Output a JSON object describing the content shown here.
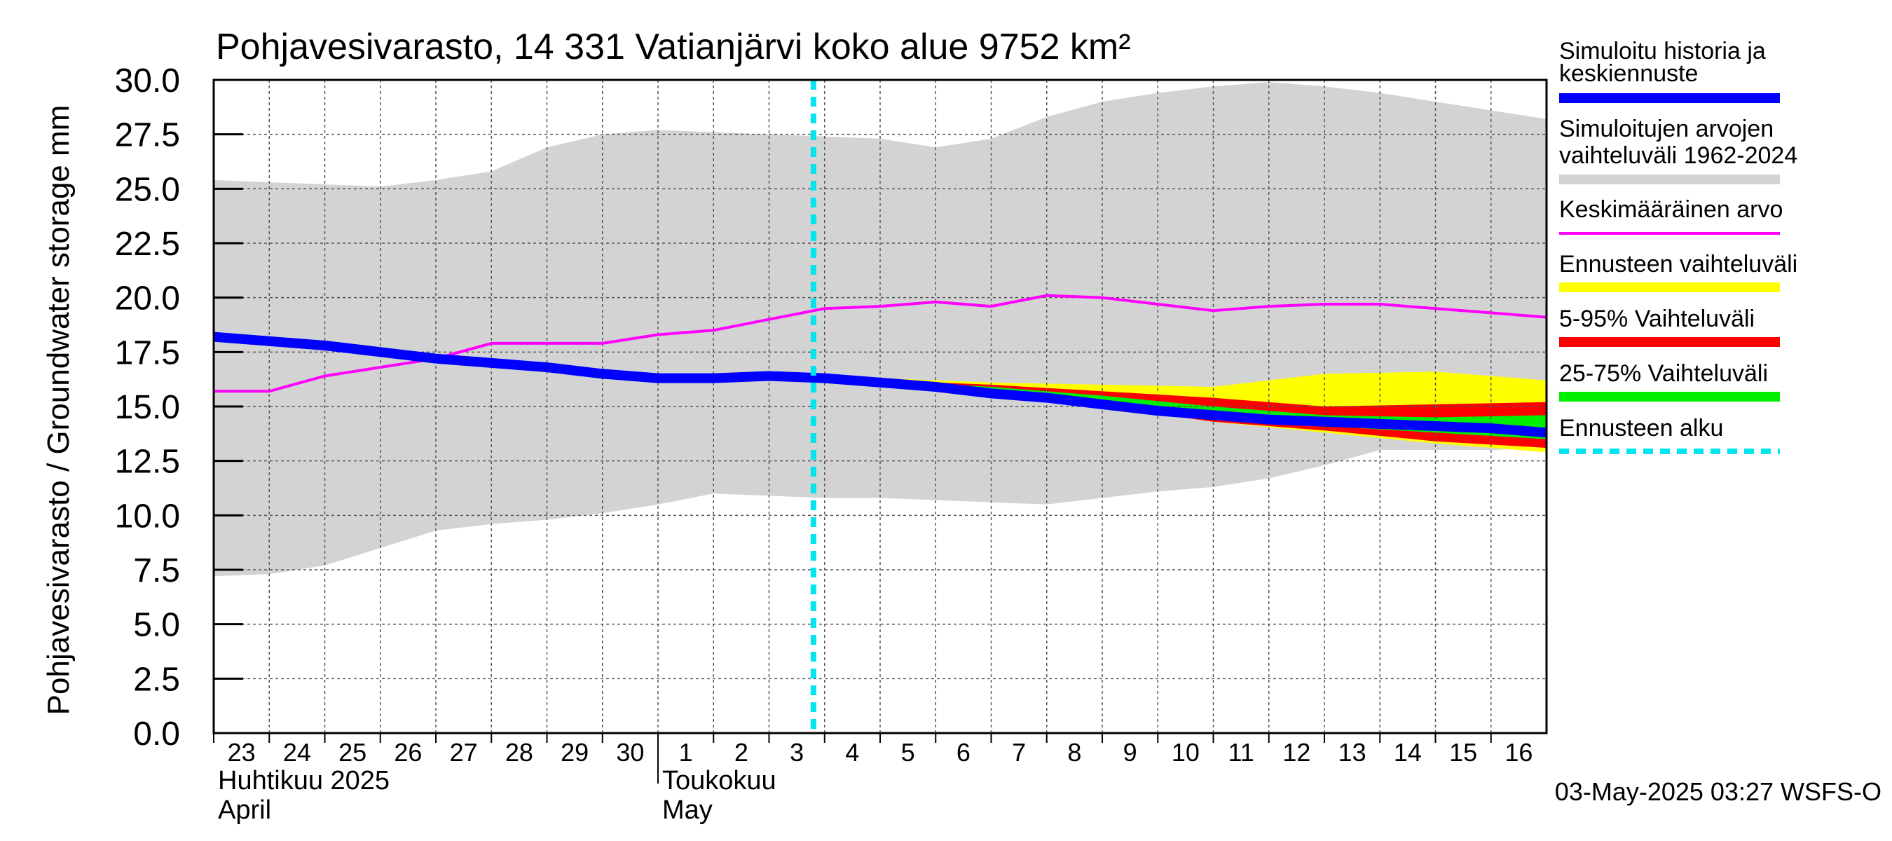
{
  "chart_data": {
    "type": "area",
    "title": "Pohjavesivarasto, 14 331 Vatianjärvi koko alue 9752 km²",
    "ylabel": "Pohjavesivarasto / Groundwater storage   mm",
    "ylim": [
      0,
      30
    ],
    "yticks": [
      "0.0",
      "2.5",
      "5.0",
      "7.5",
      "10.0",
      "12.5",
      "15.0",
      "17.5",
      "20.0",
      "22.5",
      "25.0",
      "27.5",
      "30.0"
    ],
    "x_days": [
      "23",
      "24",
      "25",
      "26",
      "27",
      "28",
      "29",
      "30",
      "1",
      "2",
      "3",
      "4",
      "5",
      "6",
      "7",
      "8",
      "9",
      "10",
      "11",
      "12",
      "13",
      "14",
      "15",
      "16"
    ],
    "month_labels": [
      {
        "fi": "Huhtikuu  2025",
        "en": "April"
      },
      {
        "fi": "Toukokuu",
        "en": "May"
      }
    ],
    "forecast_start_day": 10.8,
    "history_range": {
      "name": "Simuloitujen arvojen vaihteluväli 1962-2024",
      "day": [
        0,
        1,
        2,
        3,
        4,
        5,
        6,
        7,
        8,
        9,
        10,
        11,
        12,
        13,
        14,
        15,
        16,
        17,
        18,
        19,
        20,
        21,
        22,
        23,
        24
      ],
      "upper": [
        25.4,
        25.3,
        25.2,
        25.1,
        25.4,
        25.8,
        26.9,
        27.5,
        27.7,
        27.6,
        27.5,
        27.4,
        27.3,
        26.9,
        27.3,
        28.3,
        29.0,
        29.4,
        29.7,
        29.9,
        29.7,
        29.4,
        29.0,
        28.6,
        28.2
      ],
      "lower": [
        7.2,
        7.3,
        7.7,
        8.5,
        9.3,
        9.6,
        9.8,
        10.1,
        10.5,
        11.0,
        10.9,
        10.8,
        10.8,
        10.7,
        10.6,
        10.5,
        10.8,
        11.1,
        11.3,
        11.7,
        12.3,
        13.0,
        13.0,
        13.0,
        13.1
      ]
    },
    "mean": {
      "name": "Keskimääräinen arvo",
      "day": [
        0,
        1,
        2,
        3,
        4,
        5,
        6,
        7,
        8,
        9,
        10,
        11,
        12,
        13,
        14,
        15,
        16,
        17,
        18,
        19,
        20,
        21,
        22,
        23,
        24
      ],
      "values": [
        15.7,
        15.7,
        16.4,
        16.8,
        17.2,
        17.9,
        17.9,
        17.9,
        18.3,
        18.5,
        19.0,
        19.5,
        19.6,
        19.8,
        19.6,
        20.1,
        20.0,
        19.7,
        19.4,
        19.6,
        19.7,
        19.7,
        19.5,
        19.3,
        19.1
      ]
    },
    "history_forecast": {
      "name": "Simuloitu historia ja keskiennuste",
      "day": [
        0,
        1,
        2,
        3,
        4,
        5,
        6,
        7,
        8,
        9,
        10,
        11,
        12,
        13,
        14,
        15,
        16,
        17,
        18,
        19,
        20,
        21,
        22,
        23,
        24
      ],
      "values": [
        18.2,
        18.0,
        17.8,
        17.5,
        17.2,
        17.0,
        16.8,
        16.5,
        16.3,
        16.3,
        16.4,
        16.3,
        16.1,
        15.9,
        15.6,
        15.4,
        15.1,
        14.8,
        14.6,
        14.4,
        14.3,
        14.2,
        14.1,
        14.0,
        13.8
      ]
    },
    "forecast_range": {
      "name": "Ennusteen vaihteluväli",
      "day": [
        10.8,
        12,
        14,
        16,
        18,
        20,
        22,
        24
      ],
      "upper": [
        16.4,
        16.3,
        16.1,
        16.0,
        15.9,
        16.5,
        16.6,
        16.2
      ],
      "lower": [
        16.4,
        16.1,
        15.5,
        15.0,
        14.3,
        13.8,
        13.3,
        12.9
      ]
    },
    "p5_95": {
      "name": "5-95% Vaihteluväli",
      "day": [
        10.8,
        12,
        14,
        16,
        18,
        20,
        22,
        24
      ],
      "upper": [
        16.4,
        16.2,
        16.0,
        15.7,
        15.4,
        15.0,
        15.1,
        15.2
      ],
      "lower": [
        16.4,
        16.0,
        15.5,
        15.0,
        14.3,
        13.9,
        13.4,
        13.1
      ]
    },
    "p25_75": {
      "name": "25-75% Vaihteluväli",
      "day": [
        10.8,
        12,
        14,
        16,
        18,
        20,
        22,
        24
      ],
      "upper": [
        16.4,
        16.2,
        15.9,
        15.5,
        15.0,
        14.6,
        14.5,
        14.6
      ],
      "lower": [
        16.4,
        16.1,
        15.7,
        15.2,
        14.6,
        14.1,
        13.8,
        13.5
      ]
    },
    "forecast_start": {
      "name": "Ennusteen alku"
    },
    "legend": [
      {
        "label": "Simuloitu historia ja keskiennuste",
        "color": "#0000ff",
        "style": "thick"
      },
      {
        "label": "Simuloitujen arvojen vaihteluväli 1962-2024",
        "color": "#d3d3d3",
        "style": "thick"
      },
      {
        "label": "Keskimääräinen arvo",
        "color": "#ff00ff",
        "style": "thin"
      },
      {
        "label": "Ennusteen vaihteluväli",
        "color": "#ffff00",
        "style": "thick"
      },
      {
        "label": "5-95% Vaihteluväli",
        "color": "#ff0000",
        "style": "thick"
      },
      {
        "label": "25-75% Vaihteluväli",
        "color": "#00ee00",
        "style": "thick"
      },
      {
        "label": "Ennusteen alku",
        "color": "#00e5ee",
        "style": "dashed"
      }
    ],
    "legend_position": "right",
    "grid": true,
    "footer": "03-May-2025 03:27 WSFS-O"
  }
}
